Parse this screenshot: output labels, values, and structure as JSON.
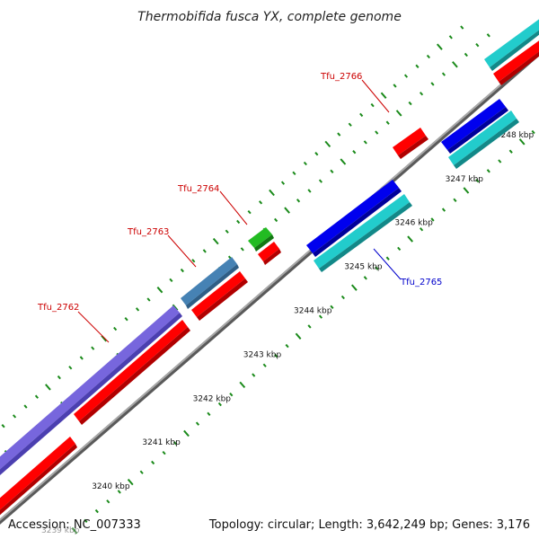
{
  "title": "Thermobifida fusca YX, complete genome",
  "footer": {
    "accession": "Accession: NC_007333",
    "stats": "Topology: circular; Length: 3,642,249 bp; Genes: 3,176"
  },
  "colors": {
    "backbone": "#8c8c8c",
    "tick": "#1a8a1a",
    "label_red": "#cc0000",
    "label_blue": "#0000cc",
    "cds_red": "#ff0000",
    "cds_blue": "#0000ee",
    "cds_cyan": "#22cccc",
    "cds_purple": "#7766dd",
    "cds_steel": "#4682b4",
    "cds_green": "#22bb22"
  },
  "ticks": [
    {
      "label": "3239 kbp",
      "faded": true
    },
    {
      "label": "3240 kbp"
    },
    {
      "label": "3241 kbp"
    },
    {
      "label": "3242 kbp"
    },
    {
      "label": "3243 kbp"
    },
    {
      "label": "3244 kbp"
    },
    {
      "label": "3245 kbp"
    },
    {
      "label": "3246 kbp"
    },
    {
      "label": "3247 kbp"
    },
    {
      "label": "3248 kbp"
    }
  ],
  "gene_labels": [
    {
      "name": "Tfu_2762",
      "color": "#cc0000"
    },
    {
      "name": "Tfu_2763",
      "color": "#cc0000"
    },
    {
      "name": "Tfu_2764",
      "color": "#cc0000"
    },
    {
      "name": "Tfu_2765",
      "color": "#0000cc"
    },
    {
      "name": "Tfu_2766",
      "color": "#cc0000"
    }
  ]
}
